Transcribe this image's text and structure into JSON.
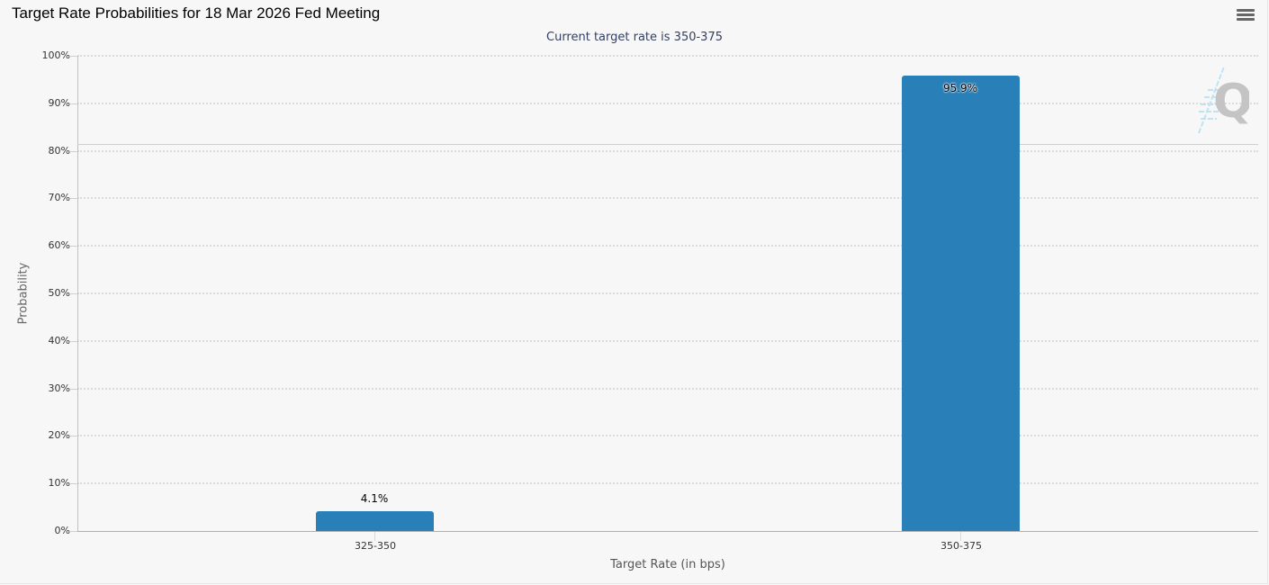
{
  "header": {
    "title": "Target Rate Probabilities for 18 Mar 2026 Fed Meeting",
    "subtitle": "Current target rate is 350-375",
    "menu_icon": "hamburger-menu-icon"
  },
  "axes": {
    "xlabel": "Target Rate (in bps)",
    "ylabel": "Probability",
    "yticks": [
      "0%",
      "10%",
      "20%",
      "30%",
      "40%",
      "50%",
      "60%",
      "70%",
      "80%",
      "90%",
      "100%"
    ]
  },
  "bars": [
    {
      "category": "325-350",
      "value": 4.1,
      "label": "4.1%"
    },
    {
      "category": "350-375",
      "value": 95.9,
      "label": "95.9%"
    }
  ],
  "colors": {
    "bar": "#2980b9",
    "background": "#f7f7f7",
    "subtitle": "#333f60"
  },
  "watermark": "Q",
  "chart_data": {
    "type": "bar",
    "title": "Target Rate Probabilities for 18 Mar 2026 Fed Meeting",
    "subtitle": "Current target rate is 350-375",
    "categories": [
      "325-350",
      "350-375"
    ],
    "values": [
      4.1,
      95.9
    ],
    "data_labels": [
      "4.1%",
      "95.9%"
    ],
    "xlabel": "Target Rate (in bps)",
    "ylabel": "Probability",
    "ylim": [
      0,
      100
    ],
    "ytick_format": "percent",
    "yticks": [
      0,
      10,
      20,
      30,
      40,
      50,
      60,
      70,
      80,
      90,
      100
    ],
    "grid": "horizontal dotted",
    "legend": "none"
  }
}
